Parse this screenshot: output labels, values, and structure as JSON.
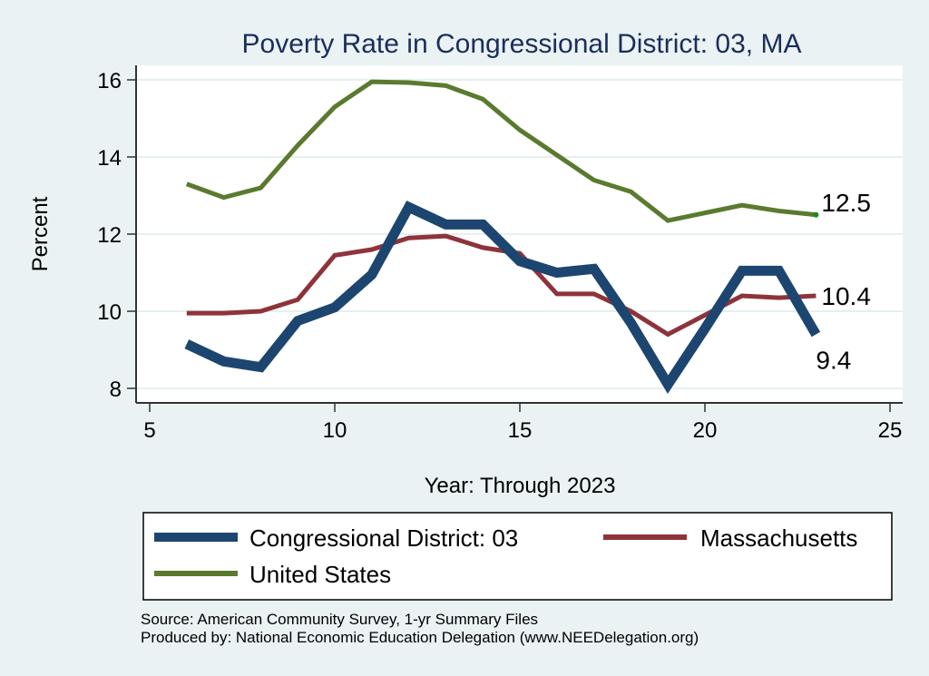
{
  "chart_data": {
    "type": "line",
    "title": "Poverty Rate in Congressional District:  03, MA",
    "xlabel": "Year: Through 2023",
    "ylabel": "Percent",
    "xlim": [
      5,
      25
    ],
    "ylim": [
      7.9,
      16.4
    ],
    "xticks": [
      5,
      10,
      15,
      20,
      25
    ],
    "yticks": [
      8,
      10,
      12,
      14,
      16
    ],
    "grid": true,
    "legend_position": "bottom",
    "x": [
      6,
      7,
      8,
      9,
      10,
      11,
      12,
      13,
      14,
      15,
      16,
      17,
      18,
      19,
      20,
      21,
      22,
      23
    ],
    "series": [
      {
        "name": "United States",
        "color": "#5a7a2e",
        "end_label": "12.5",
        "values": [
          13.3,
          12.95,
          13.2,
          14.3,
          15.3,
          15.95,
          15.93,
          15.85,
          15.5,
          14.7,
          14.05,
          13.4,
          13.1,
          12.35,
          12.55,
          12.75,
          12.6,
          12.5
        ]
      },
      {
        "name": "Massachusetts",
        "color": "#8f333b",
        "end_label": "10.4",
        "values": [
          9.95,
          9.95,
          10.0,
          10.3,
          11.45,
          11.6,
          11.9,
          11.95,
          11.65,
          11.5,
          10.45,
          10.45,
          10.0,
          9.4,
          9.9,
          10.4,
          10.35,
          10.4
        ]
      },
      {
        "name": "Congressional District:  03",
        "color": "#1c4670",
        "end_label": "9.4",
        "values": [
          9.15,
          8.7,
          8.55,
          9.75,
          10.1,
          10.95,
          12.7,
          12.25,
          12.25,
          11.3,
          11.0,
          11.1,
          9.7,
          8.1,
          9.55,
          11.05,
          11.05,
          9.4
        ]
      }
    ],
    "legend": [
      "Congressional District:  03",
      "Massachusetts",
      "United States"
    ],
    "notes": [
      "Source: American Community Survey, 1-yr Summary Files",
      "Produced by: National Economic Education Delegation (www.NEEDelegation.org)"
    ]
  }
}
